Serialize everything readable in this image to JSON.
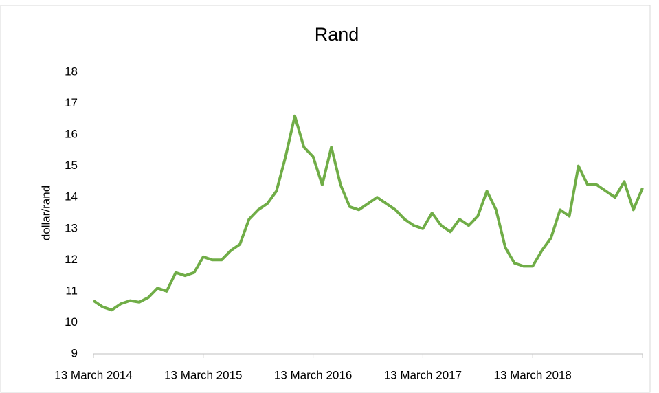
{
  "chart_data": {
    "type": "line",
    "title": "Rand",
    "y_label": "dollar/rand",
    "categories": [
      "13 March 2014",
      null,
      null,
      null,
      null,
      null,
      null,
      null,
      null,
      null,
      null,
      null,
      "13 March 2015",
      null,
      null,
      null,
      null,
      null,
      null,
      null,
      null,
      null,
      null,
      null,
      "13 March 2016",
      null,
      null,
      null,
      null,
      null,
      null,
      null,
      null,
      null,
      null,
      null,
      "13 March 2017",
      null,
      null,
      null,
      null,
      null,
      null,
      null,
      null,
      null,
      null,
      null,
      "13 March 2018",
      null,
      null,
      null,
      null,
      null,
      null,
      null,
      null,
      null,
      null,
      null,
      null
    ],
    "series": [
      {
        "name": "Rand",
        "color": "#70ad47",
        "values": [
          10.7,
          10.5,
          10.4,
          10.6,
          10.7,
          10.65,
          10.8,
          11.1,
          11.0,
          11.6,
          11.5,
          11.6,
          12.1,
          12.0,
          12.0,
          12.3,
          12.5,
          13.3,
          13.6,
          13.8,
          14.2,
          15.3,
          16.6,
          15.6,
          15.3,
          14.4,
          15.6,
          14.4,
          13.7,
          13.6,
          13.8,
          14.0,
          13.8,
          13.6,
          13.3,
          13.1,
          13.0,
          13.5,
          13.1,
          12.9,
          13.3,
          13.1,
          13.4,
          14.2,
          13.6,
          12.4,
          11.9,
          11.8,
          11.8,
          12.3,
          12.7,
          13.6,
          13.4,
          15.0,
          14.4,
          14.4,
          14.2,
          14.0,
          14.5,
          13.6,
          14.3
        ]
      }
    ],
    "ylim": [
      9,
      18
    ],
    "yticks": [
      9,
      10,
      11,
      12,
      13,
      14,
      15,
      16,
      17,
      18
    ],
    "grid": false,
    "legend": false
  }
}
